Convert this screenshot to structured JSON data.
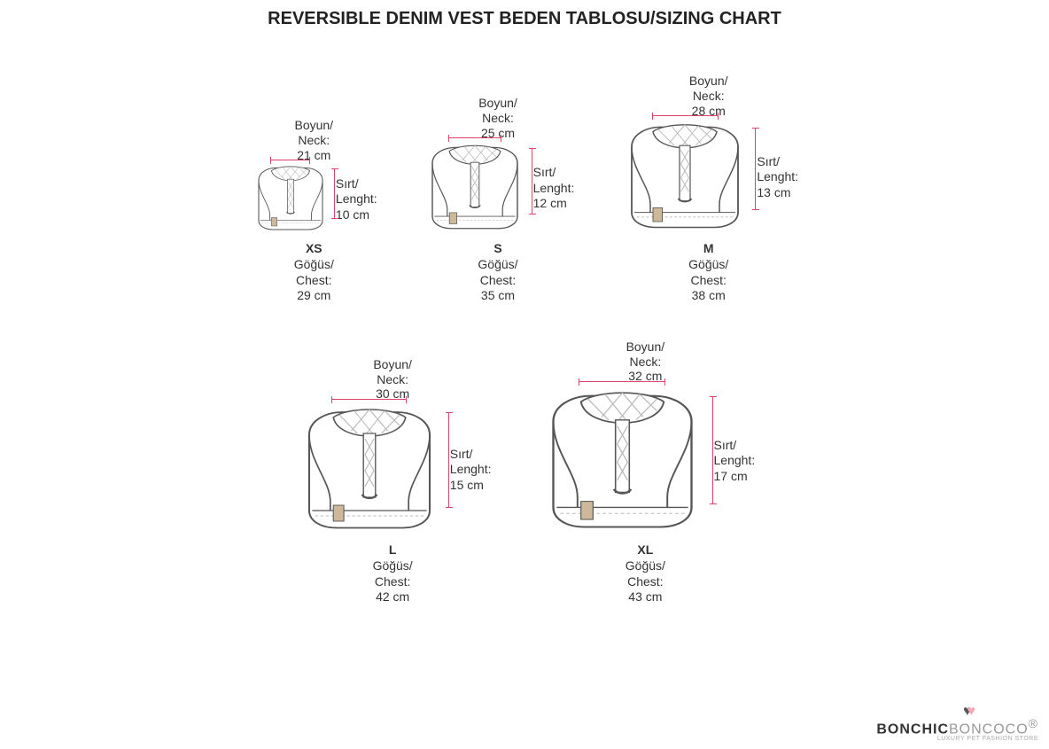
{
  "title": "REVERSIBLE DENIM VEST BEDEN TABLOSU/SIZING CHART",
  "labels": {
    "neck_tr": "Boyun/",
    "neck_en": "Neck:",
    "length_tr": "Sırt/",
    "length_en": "Lenght:",
    "chest_tr": "Göğüs/",
    "chest_en": "Chest:"
  },
  "colors": {
    "background": "#ffffff",
    "text": "#333333",
    "dim_line": "#d44668",
    "vest_stroke": "#555555",
    "vest_fill": "#ffffff",
    "collar_lines": "#bbbbbb",
    "tab_fill": "#cdb89a"
  },
  "logo": {
    "brand_a": "BONCHIC",
    "brand_b": "BONCOCO",
    "reg": "®",
    "tagline": "LUXURY PET FASHION STORE"
  },
  "sizes": [
    {
      "code": "XS",
      "neck": "21 cm",
      "length": "10 cm",
      "chest": "29 cm",
      "vest_w": 90,
      "vest_h": 80
    },
    {
      "code": "S",
      "neck": "25 cm",
      "length": "12 cm",
      "chest": "35 cm",
      "vest_w": 120,
      "vest_h": 105
    },
    {
      "code": "M",
      "neck": "28 cm",
      "length": "13 cm",
      "chest": "38 cm",
      "vest_w": 150,
      "vest_h": 130
    },
    {
      "code": "L",
      "neck": "30 cm",
      "length": "15 cm",
      "chest": "42 cm",
      "vest_w": 170,
      "vest_h": 150
    },
    {
      "code": "XL",
      "neck": "32 cm",
      "length": "17 cm",
      "chest": "43 cm",
      "vest_w": 195,
      "vest_h": 170
    }
  ]
}
